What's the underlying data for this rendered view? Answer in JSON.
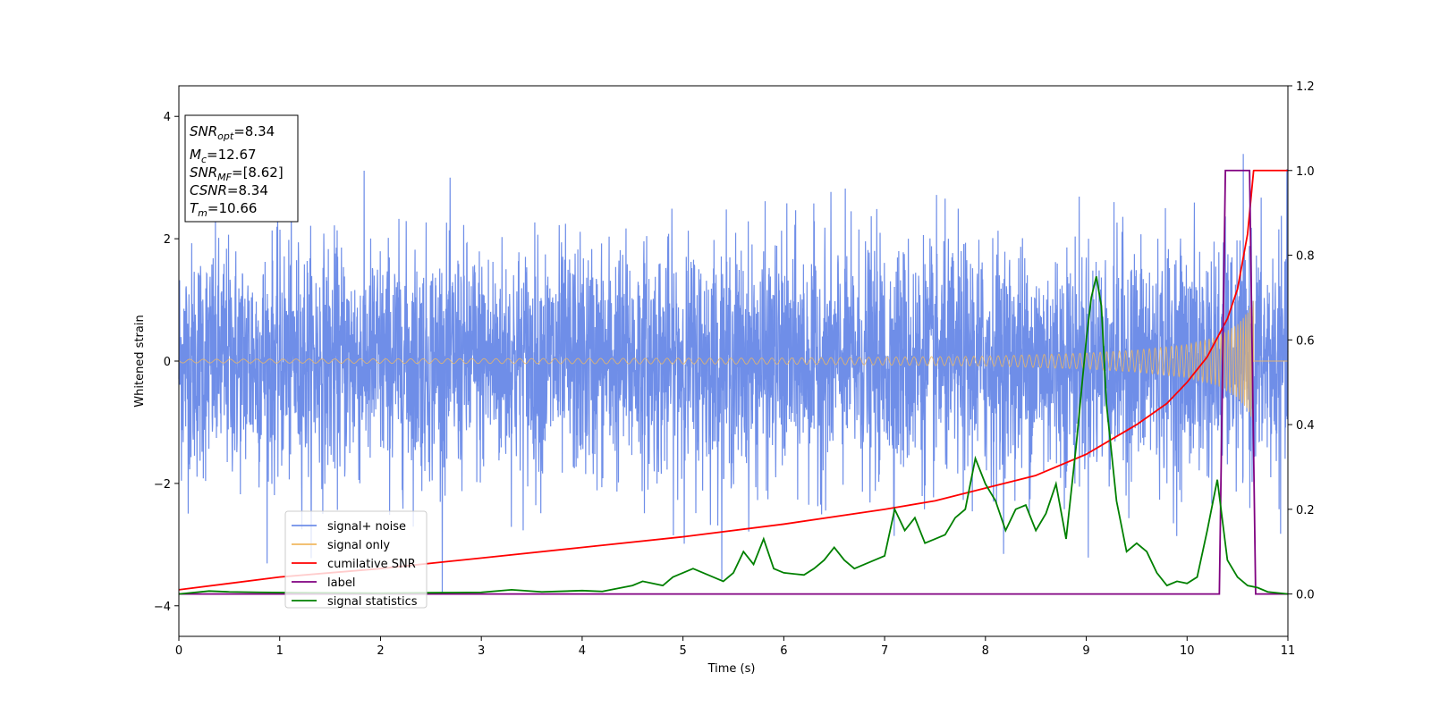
{
  "chart_data": {
    "type": "line",
    "xlabel": "Time (s)",
    "ylabel": "Whitened strain",
    "xlim": [
      0,
      11
    ],
    "ylim": [
      -4.5,
      4.5
    ],
    "y2lim": [
      -0.1,
      1.2
    ],
    "x_ticks": [
      "0",
      "1",
      "2",
      "3",
      "4",
      "5",
      "6",
      "7",
      "8",
      "9",
      "10",
      "11"
    ],
    "y_ticks": [
      "−4",
      "−2",
      "0",
      "2",
      "4"
    ],
    "y2_ticks": [
      "0.0",
      "0.2",
      "0.4",
      "0.6",
      "0.8",
      "1.0",
      "1.2"
    ],
    "legend_placement": "lower-left",
    "annotation": {
      "lines": [
        {
          "base": "SNR",
          "sub": "opt",
          "text": "=8.34"
        },
        {
          "base": "M",
          "sub": "c",
          "text": "=12.67"
        },
        {
          "base": "SNR",
          "sub": "MF",
          "text": "=[8.62]"
        },
        {
          "base": "CSNR",
          "sub": "",
          "text": "=8.34"
        },
        {
          "base": "T",
          "sub": "m",
          "text": "=10.66"
        }
      ]
    },
    "series": [
      {
        "name": "signal+ noise",
        "axis": "left",
        "color": "#6f8ee8",
        "description": "noise samples approx. ±2, spikes up to 4.18 at x≈5.9"
      },
      {
        "name": "signal only",
        "axis": "left",
        "color": "#f0b860",
        "envelope": {
          "x": [
            0,
            6,
            8,
            9,
            9.5,
            10,
            10.3,
            10.5,
            10.6,
            10.66
          ],
          "y": [
            0.03,
            0.05,
            0.08,
            0.13,
            0.18,
            0.27,
            0.4,
            0.6,
            0.8,
            1.0
          ]
        },
        "ends_at": 10.66
      },
      {
        "name": "cumilative SNR",
        "axis": "right",
        "color": "#ff0000",
        "x": [
          0,
          1,
          2,
          3,
          4,
          5,
          6,
          7,
          7.5,
          8,
          8.5,
          9,
          9.5,
          9.8,
          10,
          10.2,
          10.4,
          10.5,
          10.6,
          10.66,
          11
        ],
        "y": [
          0.01,
          0.04,
          0.06,
          0.085,
          0.11,
          0.135,
          0.165,
          0.2,
          0.22,
          0.25,
          0.28,
          0.33,
          0.4,
          0.45,
          0.5,
          0.56,
          0.65,
          0.72,
          0.85,
          1.0,
          1.0
        ]
      },
      {
        "name": "label",
        "axis": "right",
        "color": "#800080",
        "x": [
          0,
          10.32,
          10.38,
          10.62,
          10.68,
          11
        ],
        "y": [
          0,
          0,
          1.0,
          1.0,
          0,
          0
        ]
      },
      {
        "name": "signal statistics",
        "axis": "right",
        "color": "#008000",
        "x": [
          0,
          0.3,
          0.5,
          0.8,
          1.2,
          2.0,
          2.5,
          3.0,
          3.3,
          3.6,
          4.0,
          4.2,
          4.5,
          4.6,
          4.8,
          4.9,
          5.0,
          5.1,
          5.2,
          5.3,
          5.4,
          5.5,
          5.6,
          5.7,
          5.8,
          5.9,
          6.0,
          6.2,
          6.3,
          6.4,
          6.5,
          6.6,
          6.7,
          6.8,
          6.9,
          7.0,
          7.1,
          7.2,
          7.3,
          7.4,
          7.5,
          7.6,
          7.7,
          7.8,
          7.9,
          8.0,
          8.1,
          8.2,
          8.3,
          8.4,
          8.5,
          8.6,
          8.7,
          8.8,
          8.9,
          9.0,
          9.05,
          9.1,
          9.15,
          9.2,
          9.3,
          9.4,
          9.5,
          9.6,
          9.7,
          9.8,
          9.9,
          10.0,
          10.1,
          10.2,
          10.3,
          10.4,
          10.5,
          10.6,
          10.7,
          10.8,
          11.0
        ],
        "y": [
          0,
          0.007,
          0.005,
          0.004,
          0.003,
          0.002,
          0.003,
          0.004,
          0.01,
          0.005,
          0.008,
          0.006,
          0.02,
          0.03,
          0.02,
          0.04,
          0.05,
          0.06,
          0.05,
          0.04,
          0.03,
          0.05,
          0.1,
          0.07,
          0.13,
          0.06,
          0.05,
          0.045,
          0.06,
          0.08,
          0.11,
          0.08,
          0.06,
          0.07,
          0.08,
          0.09,
          0.2,
          0.15,
          0.18,
          0.12,
          0.13,
          0.14,
          0.18,
          0.2,
          0.32,
          0.26,
          0.22,
          0.15,
          0.2,
          0.21,
          0.15,
          0.19,
          0.26,
          0.13,
          0.35,
          0.6,
          0.7,
          0.75,
          0.68,
          0.45,
          0.22,
          0.1,
          0.12,
          0.1,
          0.05,
          0.02,
          0.03,
          0.025,
          0.04,
          0.15,
          0.27,
          0.08,
          0.04,
          0.02,
          0.015,
          0.005,
          0.0
        ]
      }
    ]
  }
}
